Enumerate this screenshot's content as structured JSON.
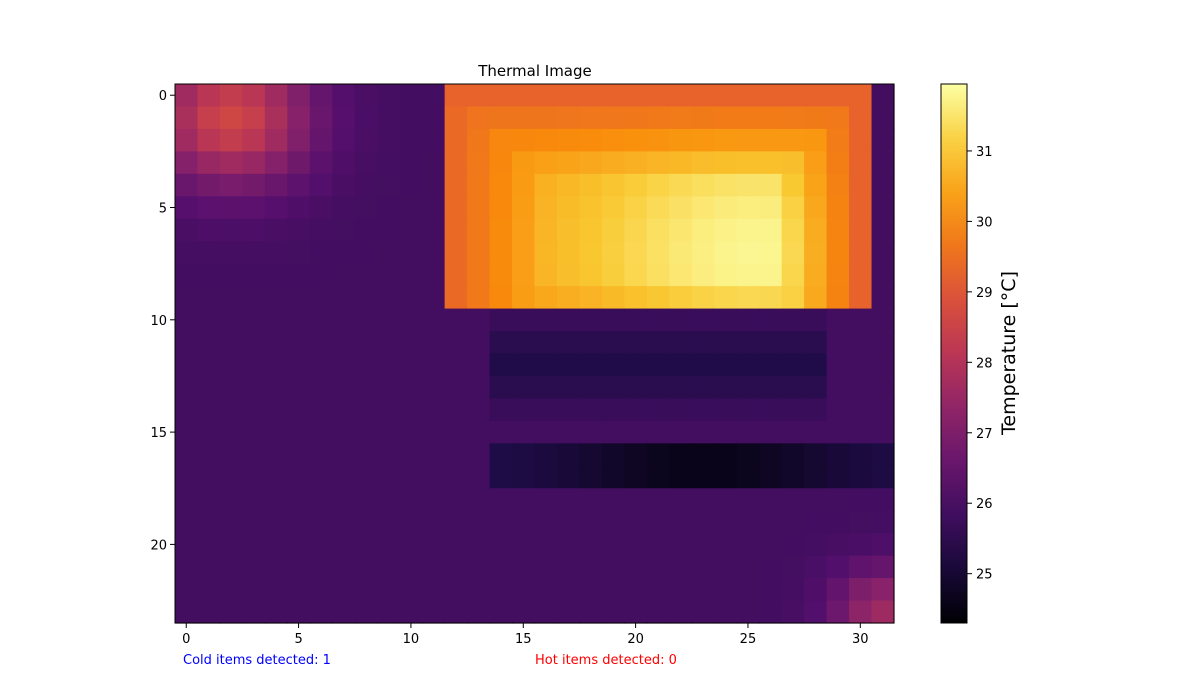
{
  "chart_data": {
    "type": "heatmap",
    "title": "Thermal Image",
    "colormap": "inferno",
    "x_range": [
      -0.5,
      31.5
    ],
    "y_range": [
      -0.5,
      23.5
    ],
    "y_inverted": true,
    "x_ticks": [
      0,
      5,
      10,
      15,
      20,
      25,
      30
    ],
    "y_ticks": [
      0,
      5,
      10,
      15,
      20
    ],
    "colorbar": {
      "label": "Temperature [°C]",
      "range": [
        24.3,
        31.95
      ],
      "ticks": [
        25,
        26,
        27,
        28,
        29,
        30,
        31
      ]
    },
    "grid": false,
    "cells": {
      "columns": 32,
      "rows": 24,
      "background_temp": 25.9,
      "hot_region": {
        "x_range": [
          11.5,
          30
        ],
        "y_range": [
          0,
          9.4
        ],
        "edge_temp": 29.3,
        "peak_temp": 31.8
      },
      "warm_top_left": {
        "center": [
          2,
          1
        ],
        "temp": 28.6
      },
      "warm_bottom_right": {
        "center": [
          31,
          23
        ],
        "temp": 27.6
      },
      "cold_band": {
        "x_range": [
          14,
          31.5
        ],
        "y_range": [
          15.5,
          17.5
        ],
        "temp": 24.6
      }
    }
  },
  "status": {
    "cold_text": "Cold items detected: 1",
    "hot_text": "Hot items detected: 0",
    "cold_color": "#0000ff",
    "hot_color": "#ff0000"
  }
}
